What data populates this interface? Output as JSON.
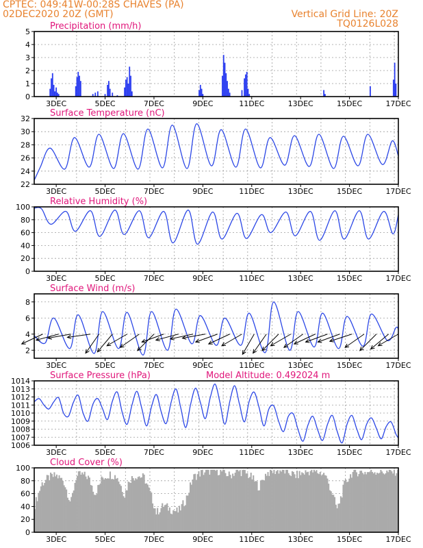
{
  "header": {
    "line1_left": "CPTEC:  049:41W-00:28S  CHAVES (PA)",
    "line2_left": "02DEC2020 20Z (GMT)",
    "line1_right": "Vertical Grid Line: 20Z",
    "line2_right": "TQ0126L028"
  },
  "colors": {
    "series": "#2a46e6",
    "bars": "#2a3cf0",
    "cloud": "#aaaaaa",
    "title": "#e0157a",
    "header": "#e8822e"
  },
  "chart_data": [
    {
      "id": "precip",
      "type": "bar",
      "title": "Precipitation (mm/h)",
      "ylim": [
        0,
        5
      ],
      "yticks": [
        0,
        1,
        2,
        3,
        4,
        5
      ],
      "x_range_days": [
        2.1,
        17.0
      ],
      "x_tick_labels": [
        "3DEC",
        "5DEC",
        "7DEC",
        "9DEC",
        "11DEC",
        "13DEC",
        "15DEC",
        "17DEC"
      ],
      "points": [
        [
          2.75,
          0.6
        ],
        [
          2.8,
          1.4
        ],
        [
          2.85,
          1.8
        ],
        [
          2.9,
          0.9
        ],
        [
          2.95,
          0.4
        ],
        [
          3.0,
          0.7
        ],
        [
          3.05,
          0.3
        ],
        [
          3.1,
          0.2
        ],
        [
          3.8,
          0.8
        ],
        [
          3.85,
          1.5
        ],
        [
          3.9,
          1.9
        ],
        [
          3.95,
          1.6
        ],
        [
          4.0,
          1.2
        ],
        [
          4.5,
          0.2
        ],
        [
          4.6,
          0.3
        ],
        [
          4.7,
          0.4
        ],
        [
          5.0,
          0.2
        ],
        [
          5.1,
          0.9
        ],
        [
          5.15,
          1.2
        ],
        [
          5.2,
          0.6
        ],
        [
          5.3,
          0.3
        ],
        [
          5.5,
          0.1
        ],
        [
          5.8,
          0.7
        ],
        [
          5.85,
          1.3
        ],
        [
          5.9,
          1.5
        ],
        [
          5.95,
          1.0
        ],
        [
          6.0,
          2.3
        ],
        [
          6.05,
          1.6
        ],
        [
          6.1,
          0.4
        ],
        [
          8.85,
          0.5
        ],
        [
          8.9,
          0.9
        ],
        [
          8.95,
          0.6
        ],
        [
          9.0,
          0.2
        ],
        [
          9.8,
          1.6
        ],
        [
          9.85,
          3.2
        ],
        [
          9.9,
          2.6
        ],
        [
          9.95,
          1.8
        ],
        [
          10.0,
          1.2
        ],
        [
          10.05,
          0.6
        ],
        [
          10.1,
          0.3
        ],
        [
          10.6,
          0.5
        ],
        [
          10.7,
          1.4
        ],
        [
          10.75,
          1.7
        ],
        [
          10.8,
          1.9
        ],
        [
          10.85,
          0.6
        ],
        [
          10.9,
          0.2
        ],
        [
          13.95,
          0.5
        ],
        [
          14.0,
          0.2
        ],
        [
          15.85,
          0.8
        ],
        [
          16.8,
          1.3
        ],
        [
          16.85,
          2.6
        ],
        [
          16.9,
          1.0
        ]
      ]
    },
    {
      "id": "temp",
      "type": "line",
      "title": "Surface Temperature (nC)",
      "ylim": [
        22,
        32
      ],
      "yticks": [
        22,
        24,
        26,
        28,
        30,
        32
      ],
      "x_range_days": [
        2.1,
        17.0
      ],
      "x_tick_labels": [
        "3DEC",
        "5DEC",
        "7DEC",
        "9DEC",
        "11DEC",
        "13DEC",
        "15DEC",
        "17DEC"
      ],
      "peaks": [
        27.5,
        29.1,
        29.6,
        29.7,
        30.4,
        31.0,
        31.2,
        30.3,
        30.4,
        29.1,
        29.4,
        29.6,
        29.3,
        29.6,
        28.6
      ],
      "troughs": [
        24.6,
        24.3,
        24.6,
        24.4,
        24.3,
        24.5,
        24.4,
        24.8,
        24.6,
        24.5,
        24.9,
        24.7,
        24.4,
        24.8,
        25.0
      ],
      "start_value": 22.6,
      "end_value": 26.3
    },
    {
      "id": "rh",
      "type": "line",
      "title": "Relative Humidity (%)",
      "ylim": [
        0,
        100
      ],
      "yticks": [
        0,
        20,
        40,
        60,
        80,
        100
      ],
      "x_range_days": [
        2.1,
        17.0
      ],
      "x_tick_labels": [
        "3DEC",
        "5DEC",
        "7DEC",
        "9DEC",
        "11DEC",
        "13DEC",
        "15DEC",
        "17DEC"
      ],
      "highs": [
        97,
        93,
        94,
        95,
        94,
        93,
        95,
        92,
        90,
        88,
        92,
        93,
        94,
        94,
        93
      ],
      "lows": [
        73,
        62,
        54,
        57,
        52,
        44,
        42,
        50,
        51,
        60,
        55,
        48,
        50,
        50,
        58
      ],
      "start_value": 98,
      "end_value": 88
    },
    {
      "id": "wind",
      "type": "line",
      "title": "Surface Wind (m/s)",
      "ylim": [
        1,
        9
      ],
      "yticks": [
        2,
        4,
        6,
        8
      ],
      "x_range_days": [
        2.1,
        17.0
      ],
      "x_tick_labels": [
        "3DEC",
        "5DEC",
        "7DEC",
        "9DEC",
        "11DEC",
        "13DEC",
        "15DEC",
        "17DEC"
      ],
      "highs": [
        6.0,
        6.4,
        6.8,
        6.7,
        6.8,
        7.1,
        6.3,
        6.0,
        6.6,
        8.0,
        6.8,
        6.6,
        6.2,
        6.5,
        4.8
      ],
      "lows": [
        2.9,
        2.2,
        1.6,
        2.2,
        1.4,
        2.0,
        2.8,
        2.6,
        2.6,
        1.7,
        2.0,
        2.4,
        2.2,
        2.5,
        3.2
      ],
      "start_value": 3.8,
      "end_value": 4.6,
      "vector_days": [
        2.45,
        3.1,
        3.6,
        4.4,
        4.75,
        5.3,
        5.9,
        6.4,
        7.0,
        7.4,
        8.0,
        8.6,
        9.1,
        9.6,
        10.1,
        10.6,
        11.1,
        11.6,
        12.1,
        12.6,
        13.1,
        13.6,
        14.1,
        14.6,
        15.1,
        15.6,
        16.1,
        16.6,
        17.0
      ],
      "vector_angles_deg": [
        205,
        195,
        190,
        188,
        235,
        230,
        210,
        215,
        225,
        200,
        195,
        192,
        190,
        200,
        205,
        210,
        240,
        235,
        225,
        210,
        215,
        205,
        200,
        200,
        198,
        215,
        225,
        220,
        210
      ]
    },
    {
      "id": "pressure",
      "type": "line",
      "title": "Surface Pressure (hPa)",
      "annotation": "Model Altitude: 0.492024 m",
      "ylim": [
        1006,
        1014
      ],
      "yticks": [
        1006,
        1007,
        1008,
        1009,
        1010,
        1011,
        1012,
        1013,
        1014
      ],
      "x_range_days": [
        2.1,
        17.0
      ],
      "x_tick_labels": [
        "3DEC",
        "5DEC",
        "7DEC",
        "9DEC",
        "11DEC",
        "13DEC",
        "15DEC",
        "17DEC"
      ],
      "values": [
        [
          2.1,
          1011.4
        ],
        [
          2.3,
          1011.8
        ],
        [
          2.5,
          1011.0
        ],
        [
          2.7,
          1010.5
        ],
        [
          2.9,
          1011.4
        ],
        [
          3.1,
          1011.9
        ],
        [
          3.3,
          1010.0
        ],
        [
          3.5,
          1009.6
        ],
        [
          3.7,
          1011.3
        ],
        [
          3.9,
          1012.2
        ],
        [
          4.1,
          1010.0
        ],
        [
          4.3,
          1009.0
        ],
        [
          4.5,
          1011.1
        ],
        [
          4.7,
          1011.8
        ],
        [
          4.9,
          1010.5
        ],
        [
          5.1,
          1009.2
        ],
        [
          5.3,
          1011.5
        ],
        [
          5.5,
          1012.6
        ],
        [
          5.7,
          1010.1
        ],
        [
          5.9,
          1008.6
        ],
        [
          6.1,
          1011.0
        ],
        [
          6.3,
          1012.7
        ],
        [
          6.5,
          1010.6
        ],
        [
          6.7,
          1008.4
        ],
        [
          6.9,
          1010.8
        ],
        [
          7.1,
          1012.3
        ],
        [
          7.3,
          1010.1
        ],
        [
          7.5,
          1008.7
        ],
        [
          7.7,
          1011.3
        ],
        [
          7.9,
          1013.0
        ],
        [
          8.1,
          1010.6
        ],
        [
          8.3,
          1008.2
        ],
        [
          8.5,
          1011.1
        ],
        [
          8.7,
          1013.1
        ],
        [
          8.9,
          1011.3
        ],
        [
          9.1,
          1009.3
        ],
        [
          9.3,
          1011.9
        ],
        [
          9.5,
          1013.6
        ],
        [
          9.7,
          1011.3
        ],
        [
          9.9,
          1008.6
        ],
        [
          10.1,
          1011.4
        ],
        [
          10.3,
          1013.4
        ],
        [
          10.5,
          1011.1
        ],
        [
          10.7,
          1008.9
        ],
        [
          10.9,
          1011.5
        ],
        [
          11.1,
          1012.6
        ],
        [
          11.3,
          1010.7
        ],
        [
          11.5,
          1008.4
        ],
        [
          11.7,
          1010.5
        ],
        [
          11.9,
          1010.9
        ],
        [
          12.1,
          1009.0
        ],
        [
          12.3,
          1007.7
        ],
        [
          12.5,
          1009.6
        ],
        [
          12.7,
          1009.9
        ],
        [
          12.9,
          1007.9
        ],
        [
          13.1,
          1006.5
        ],
        [
          13.3,
          1008.5
        ],
        [
          13.5,
          1009.6
        ],
        [
          13.7,
          1007.9
        ],
        [
          13.9,
          1006.6
        ],
        [
          14.1,
          1008.6
        ],
        [
          14.3,
          1009.7
        ],
        [
          14.5,
          1007.7
        ],
        [
          14.7,
          1006.3
        ],
        [
          14.9,
          1008.6
        ],
        [
          15.1,
          1009.7
        ],
        [
          15.3,
          1008.0
        ],
        [
          15.5,
          1006.7
        ],
        [
          15.7,
          1008.6
        ],
        [
          15.9,
          1009.4
        ],
        [
          16.1,
          1008.1
        ],
        [
          16.3,
          1006.8
        ],
        [
          16.5,
          1008.3
        ],
        [
          16.7,
          1008.9
        ],
        [
          16.9,
          1007.4
        ],
        [
          17.0,
          1006.9
        ]
      ]
    },
    {
      "id": "cloud",
      "type": "bar",
      "title": "Cloud Cover (%)",
      "ylim": [
        0,
        100
      ],
      "yticks": [
        0,
        20,
        40,
        60,
        80,
        100
      ],
      "x_range_days": [
        2.1,
        17.0
      ],
      "x_tick_labels": [
        "3DEC",
        "5DEC",
        "7DEC",
        "9DEC",
        "11DEC",
        "13DEC",
        "15DEC",
        "17DEC"
      ],
      "profile": [
        [
          2.1,
          40
        ],
        [
          2.4,
          75
        ],
        [
          2.7,
          85
        ],
        [
          3.0,
          88
        ],
        [
          3.3,
          80
        ],
        [
          3.6,
          45
        ],
        [
          3.8,
          85
        ],
        [
          4.0,
          90
        ],
        [
          4.3,
          86
        ],
        [
          4.6,
          60
        ],
        [
          4.9,
          85
        ],
        [
          5.2,
          90
        ],
        [
          5.5,
          86
        ],
        [
          5.8,
          58
        ],
        [
          6.0,
          82
        ],
        [
          6.3,
          88
        ],
        [
          6.6,
          85
        ],
        [
          6.9,
          55
        ],
        [
          7.1,
          30
        ],
        [
          7.4,
          42
        ],
        [
          7.7,
          35
        ],
        [
          8.0,
          32
        ],
        [
          8.3,
          50
        ],
        [
          8.6,
          85
        ],
        [
          8.9,
          92
        ],
        [
          9.2,
          95
        ],
        [
          9.5,
          96
        ],
        [
          9.8,
          94
        ],
        [
          10.1,
          88
        ],
        [
          10.4,
          95
        ],
        [
          10.7,
          93
        ],
        [
          11.0,
          85
        ],
        [
          11.3,
          70
        ],
        [
          11.6,
          92
        ],
        [
          11.9,
          95
        ],
        [
          12.2,
          96
        ],
        [
          12.5,
          93
        ],
        [
          12.8,
          88
        ],
        [
          13.1,
          92
        ],
        [
          13.4,
          95
        ],
        [
          13.7,
          93
        ],
        [
          14.0,
          90
        ],
        [
          14.3,
          60
        ],
        [
          14.5,
          35
        ],
        [
          14.8,
          75
        ],
        [
          15.1,
          92
        ],
        [
          15.4,
          94
        ],
        [
          15.7,
          93
        ],
        [
          16.0,
          95
        ],
        [
          16.3,
          94
        ],
        [
          16.6,
          93
        ],
        [
          17.0,
          95
        ]
      ]
    }
  ]
}
